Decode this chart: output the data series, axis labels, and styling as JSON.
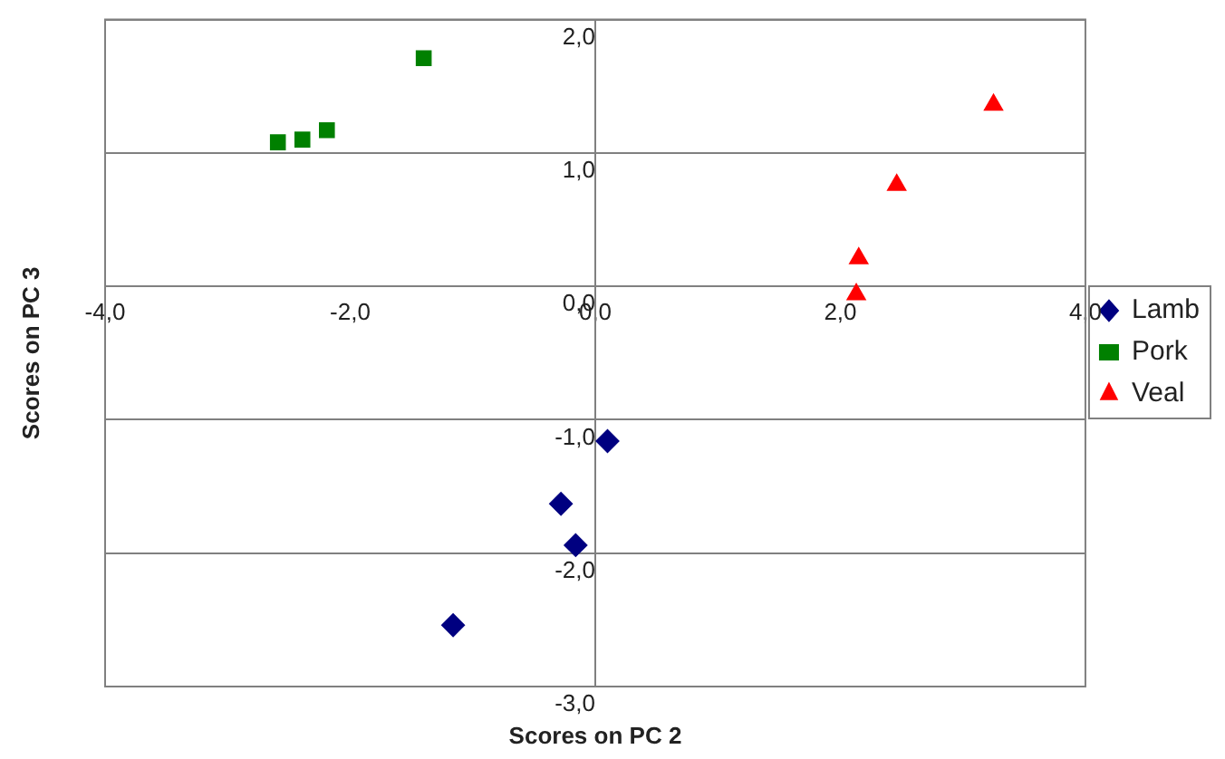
{
  "chart_data": {
    "type": "scatter",
    "xlabel": "Scores on PC 2",
    "ylabel": "Scores on PC 3",
    "xlim": [
      -4,
      4
    ],
    "xticks": [
      {
        "value": -4,
        "label": "-4,0"
      },
      {
        "value": -2,
        "label": "-2,0"
      },
      {
        "value": 0,
        "label": "0,0"
      },
      {
        "value": 2,
        "label": "2,0"
      },
      {
        "value": 4,
        "label": "4,0"
      }
    ],
    "ylim": [
      -3,
      2
    ],
    "yticks": [
      {
        "value": -3,
        "label": "-3,0"
      },
      {
        "value": -2,
        "label": "-2,0"
      },
      {
        "value": -1,
        "label": "-1,0"
      },
      {
        "value": 0,
        "label": "0,0"
      },
      {
        "value": 1,
        "label": "1,0"
      },
      {
        "value": 2,
        "label": "2,0"
      }
    ],
    "grid": "y",
    "legend": "right",
    "series": [
      {
        "name": "Lamb",
        "color": "#000080",
        "marker": "diamond",
        "x": [
          0.1,
          -0.28,
          -0.16,
          -1.16
        ],
        "values": [
          -1.16,
          -1.63,
          -1.94,
          -2.54
        ]
      },
      {
        "name": "Pork",
        "color": "#008000",
        "marker": "square",
        "x": [
          -2.59,
          -2.39,
          -2.19,
          -1.4
        ],
        "values": [
          1.08,
          1.1,
          1.17,
          1.71
        ]
      },
      {
        "name": "Veal",
        "color": "#ff0000",
        "marker": "triangle",
        "x": [
          3.25,
          2.46,
          2.15,
          2.13
        ],
        "values": [
          1.36,
          0.76,
          0.21,
          -0.06
        ]
      }
    ]
  }
}
